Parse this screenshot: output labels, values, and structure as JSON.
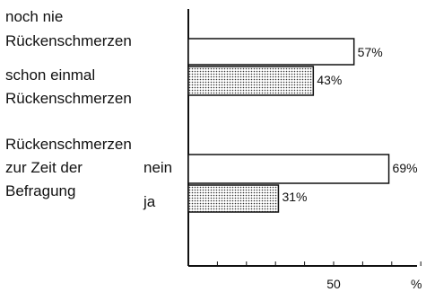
{
  "chart_data": {
    "type": "bar",
    "orientation": "horizontal",
    "x_unit": "%",
    "xlim": [
      0,
      100
    ],
    "x_ticks": [
      50
    ],
    "x_tick_labels": [
      "50"
    ],
    "groups": [
      {
        "label_lines": [],
        "bars": [
          {
            "label_lines": [
              "noch nie",
              "Rückenschmerzen"
            ],
            "value": 57,
            "value_label": "57%",
            "fill": "plain"
          },
          {
            "label_lines": [
              "schon einmal",
              "Rückenschmerzen"
            ],
            "value": 43,
            "value_label": "43%",
            "fill": "dotted"
          }
        ]
      },
      {
        "label_lines": [
          "Rückenschmerzen",
          "zur Zeit der",
          "Befragung"
        ],
        "bars": [
          {
            "label_lines": [
              "nein"
            ],
            "value": 69,
            "value_label": "69%",
            "fill": "plain"
          },
          {
            "label_lines": [
              "ja"
            ],
            "value": 31,
            "value_label": "31%",
            "fill": "dotted"
          }
        ]
      }
    ]
  }
}
